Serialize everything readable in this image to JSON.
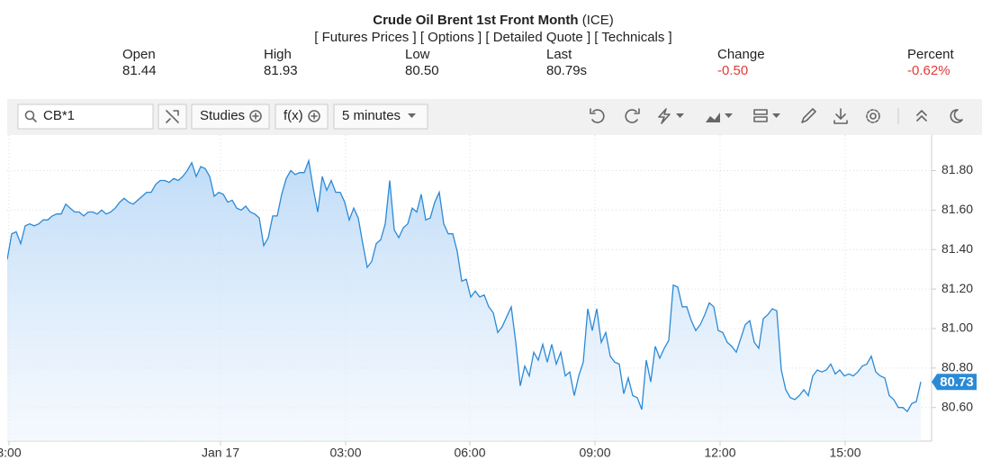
{
  "header": {
    "title": "Crude Oil Brent 1st Front Month",
    "exchange": " (ICE)",
    "links": [
      "[ Futures Prices ]",
      "[ Options ]",
      "[ Detailed Quote ]",
      "[ Technicals ]"
    ],
    "quotes": [
      {
        "label": "Open",
        "value": "81.44"
      },
      {
        "label": "High",
        "value": "81.93"
      },
      {
        "label": "Low",
        "value": "80.50"
      },
      {
        "label": "Last",
        "value": "80.79s"
      },
      {
        "label": "Change",
        "value": "-0.50"
      },
      {
        "label": "Percent",
        "value": "-0.62%"
      }
    ]
  },
  "toolbar": {
    "symbol": "CB*1",
    "studies": "Studies",
    "fx": "f(x)",
    "interval": "5 minutes"
  },
  "chart_data": {
    "type": "area",
    "color": "#2b8ad6",
    "grid": true,
    "values": [
      81.35,
      81.48,
      81.49,
      81.43,
      81.52,
      81.53,
      81.52,
      81.53,
      81.55,
      81.55,
      81.57,
      81.58,
      81.58,
      81.63,
      81.61,
      81.59,
      81.59,
      81.57,
      81.59,
      81.59,
      81.58,
      81.6,
      81.58,
      81.59,
      81.61,
      81.64,
      81.66,
      81.64,
      81.63,
      81.65,
      81.67,
      81.69,
      81.69,
      81.73,
      81.75,
      81.75,
      81.74,
      81.76,
      81.75,
      81.77,
      81.8,
      81.84,
      81.77,
      81.82,
      81.81,
      81.77,
      81.67,
      81.69,
      81.68,
      81.64,
      81.65,
      81.61,
      81.6,
      81.62,
      81.59,
      81.58,
      81.56,
      81.42,
      81.46,
      81.57,
      81.57,
      81.68,
      81.76,
      81.8,
      81.78,
      81.79,
      81.79,
      81.85,
      81.71,
      81.59,
      81.77,
      81.7,
      81.75,
      81.69,
      81.69,
      81.64,
      81.55,
      81.61,
      81.56,
      81.43,
      81.31,
      81.34,
      81.43,
      81.45,
      81.53,
      81.75,
      81.5,
      81.46,
      81.51,
      81.53,
      81.61,
      81.59,
      81.68,
      81.55,
      81.56,
      81.64,
      81.69,
      81.53,
      81.48,
      81.48,
      81.39,
      81.24,
      81.25,
      81.16,
      81.19,
      81.16,
      81.17,
      81.11,
      81.08,
      80.98,
      81.01,
      81.06,
      81.11,
      80.93,
      80.71,
      80.81,
      80.76,
      80.88,
      80.84,
      80.92,
      80.83,
      80.92,
      80.82,
      80.88,
      80.76,
      80.78,
      80.66,
      80.76,
      80.83,
      81.1,
      80.99,
      81.1,
      80.93,
      80.98,
      80.86,
      80.83,
      80.82,
      80.67,
      80.75,
      80.66,
      80.65,
      80.59,
      80.84,
      80.73,
      80.91,
      80.85,
      80.9,
      80.94,
      81.22,
      81.21,
      81.11,
      81.11,
      81.04,
      80.99,
      81.02,
      81.07,
      81.13,
      81.11,
      80.99,
      80.98,
      80.93,
      80.91,
      80.88,
      80.95,
      81.02,
      81.04,
      80.93,
      80.9,
      81.05,
      81.07,
      81.1,
      81.09,
      80.79,
      80.69,
      80.65,
      80.64,
      80.66,
      80.69,
      80.66,
      80.76,
      80.79,
      80.78,
      80.79,
      80.82,
      80.77,
      80.79,
      80.76,
      80.77,
      80.76,
      80.78,
      80.81,
      80.82,
      80.86,
      80.78,
      80.76,
      80.75,
      80.66,
      80.64,
      80.6,
      80.6,
      80.58,
      80.62,
      80.63,
      80.73
    ],
    "last_value": 80.73,
    "xlim": [
      0,
      205
    ],
    "xticks": [
      {
        "value": 0.4,
        "label": "3:00"
      },
      {
        "value": 47.4,
        "label": "Jan 17"
      },
      {
        "value": 75.2,
        "label": "03:00"
      },
      {
        "value": 102.8,
        "label": "06:00"
      },
      {
        "value": 130.6,
        "label": "09:00"
      },
      {
        "value": 158.4,
        "label": "12:00"
      },
      {
        "value": 186.2,
        "label": "15:00"
      }
    ],
    "ylim": [
      80.43,
      81.98
    ],
    "yticks": [
      {
        "value": 80.6,
        "label": "80.60"
      },
      {
        "value": 80.8,
        "label": "80.80"
      },
      {
        "value": 81.0,
        "label": "81.00"
      },
      {
        "value": 81.2,
        "label": "81.20"
      },
      {
        "value": 81.4,
        "label": "81.40"
      },
      {
        "value": 81.6,
        "label": "81.60"
      },
      {
        "value": 81.8,
        "label": "81.80"
      }
    ]
  }
}
